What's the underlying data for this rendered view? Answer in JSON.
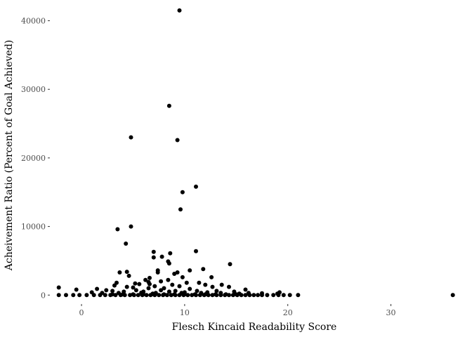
{
  "chart_data": {
    "type": "scatter",
    "title": "",
    "xlabel": "Flesch Kincaid Readability Score",
    "ylabel": "Acheivement Ratio (Percent of Goal Achieved)",
    "xlim": [
      -3,
      36.5
    ],
    "ylim": [
      -1200,
      42000
    ],
    "x_ticks": [
      0,
      10,
      20,
      30
    ],
    "y_ticks": [
      0,
      10000,
      20000,
      30000,
      40000
    ],
    "x_tick_labels": [
      "0",
      "10",
      "20",
      "30"
    ],
    "y_tick_labels": [
      "0",
      "10000",
      "20000",
      "30000",
      "40000"
    ],
    "grid": false,
    "legend": "none",
    "point_color": "#000000",
    "points": [
      [
        9.5,
        41500
      ],
      [
        8.5,
        27600
      ],
      [
        4.8,
        23000
      ],
      [
        9.3,
        22600
      ],
      [
        11.1,
        15800
      ],
      [
        9.8,
        15000
      ],
      [
        9.6,
        12500
      ],
      [
        4.8,
        10000
      ],
      [
        3.5,
        9600
      ],
      [
        4.3,
        7500
      ],
      [
        11.1,
        6400
      ],
      [
        7.0,
        6300
      ],
      [
        8.6,
        6100
      ],
      [
        7.0,
        5500
      ],
      [
        7.8,
        5600
      ],
      [
        8.4,
        4900
      ],
      [
        8.5,
        4600
      ],
      [
        14.4,
        4500
      ],
      [
        11.8,
        3800
      ],
      [
        10.5,
        3600
      ],
      [
        7.4,
        3600
      ],
      [
        3.7,
        3300
      ],
      [
        4.4,
        3400
      ],
      [
        9.3,
        3300
      ],
      [
        9.0,
        3100
      ],
      [
        7.4,
        3300
      ],
      [
        4.6,
        2800
      ],
      [
        9.8,
        2600
      ],
      [
        6.6,
        2500
      ],
      [
        12.6,
        2600
      ],
      [
        6.2,
        2200
      ],
      [
        8.4,
        2200
      ],
      [
        7.7,
        2000
      ],
      [
        6.5,
        1900
      ],
      [
        10.2,
        1800
      ],
      [
        11.4,
        1800
      ],
      [
        3.4,
        1800
      ],
      [
        5.2,
        1700
      ],
      [
        5.6,
        1600
      ],
      [
        6.6,
        1600
      ],
      [
        8.8,
        1500
      ],
      [
        12.0,
        1500
      ],
      [
        13.6,
        1500
      ],
      [
        3.2,
        1400
      ],
      [
        7.1,
        1300
      ],
      [
        9.5,
        1300
      ],
      [
        12.7,
        1200
      ],
      [
        4.4,
        1200
      ],
      [
        14.3,
        1200
      ],
      [
        -2.2,
        1100
      ],
      [
        5.0,
        1100
      ],
      [
        6.5,
        1000
      ],
      [
        8.0,
        1000
      ],
      [
        10.5,
        900
      ],
      [
        15.9,
        800
      ],
      [
        -0.5,
        800
      ],
      [
        1.5,
        900
      ],
      [
        2.4,
        700
      ],
      [
        5.3,
        700
      ],
      [
        7.7,
        700
      ],
      [
        9.1,
        600
      ],
      [
        11.2,
        600
      ],
      [
        13.1,
        600
      ],
      [
        14.8,
        500
      ],
      [
        3.0,
        600
      ],
      [
        4.1,
        500
      ],
      [
        6.0,
        500
      ],
      [
        8.5,
        500
      ],
      [
        10.0,
        400
      ],
      [
        12.2,
        400
      ],
      [
        1.0,
        400
      ],
      [
        2.0,
        300
      ],
      [
        3.6,
        300
      ],
      [
        5.8,
        350
      ],
      [
        7.2,
        300
      ],
      [
        9.7,
        300
      ],
      [
        11.6,
        300
      ],
      [
        13.5,
        300
      ],
      [
        16.2,
        300
      ],
      [
        19.2,
        400
      ],
      [
        19.0,
        200
      ],
      [
        17.5,
        250
      ],
      [
        15.3,
        200
      ],
      [
        6.9,
        200
      ],
      [
        -2.2,
        0
      ],
      [
        -1.5,
        0
      ],
      [
        -0.8,
        0
      ],
      [
        -0.2,
        0
      ],
      [
        0.5,
        0
      ],
      [
        1.2,
        0
      ],
      [
        1.8,
        0
      ],
      [
        2.3,
        0
      ],
      [
        2.8,
        0
      ],
      [
        3.3,
        0
      ],
      [
        3.8,
        0
      ],
      [
        4.2,
        0
      ],
      [
        4.7,
        0
      ],
      [
        5.1,
        0
      ],
      [
        5.5,
        0
      ],
      [
        5.9,
        0
      ],
      [
        6.3,
        0
      ],
      [
        6.7,
        0
      ],
      [
        7.1,
        0
      ],
      [
        7.5,
        0
      ],
      [
        7.9,
        0
      ],
      [
        8.3,
        0
      ],
      [
        8.7,
        0
      ],
      [
        9.1,
        0
      ],
      [
        9.5,
        0
      ],
      [
        9.9,
        0
      ],
      [
        10.3,
        0
      ],
      [
        10.7,
        0
      ],
      [
        11.1,
        0
      ],
      [
        11.5,
        0
      ],
      [
        11.9,
        0
      ],
      [
        12.3,
        0
      ],
      [
        12.7,
        0
      ],
      [
        13.1,
        0
      ],
      [
        13.5,
        0
      ],
      [
        13.9,
        0
      ],
      [
        14.3,
        0
      ],
      [
        14.7,
        0
      ],
      [
        15.1,
        0
      ],
      [
        15.5,
        0
      ],
      [
        15.9,
        0
      ],
      [
        16.3,
        0
      ],
      [
        16.7,
        0
      ],
      [
        17.1,
        0
      ],
      [
        17.5,
        0
      ],
      [
        18.0,
        0
      ],
      [
        18.6,
        0
      ],
      [
        19.1,
        0
      ],
      [
        19.6,
        0
      ],
      [
        20.2,
        0
      ],
      [
        21.0,
        0
      ],
      [
        36.0,
        0
      ],
      [
        4.0,
        100
      ],
      [
        6.0,
        100
      ],
      [
        8.0,
        100
      ],
      [
        10.0,
        100
      ],
      [
        12.0,
        100
      ],
      [
        14.0,
        100
      ],
      [
        3.0,
        100
      ],
      [
        5.0,
        100
      ],
      [
        7.0,
        100
      ],
      [
        9.0,
        100
      ],
      [
        11.0,
        100
      ],
      [
        13.0,
        100
      ],
      [
        15.0,
        100
      ]
    ]
  }
}
